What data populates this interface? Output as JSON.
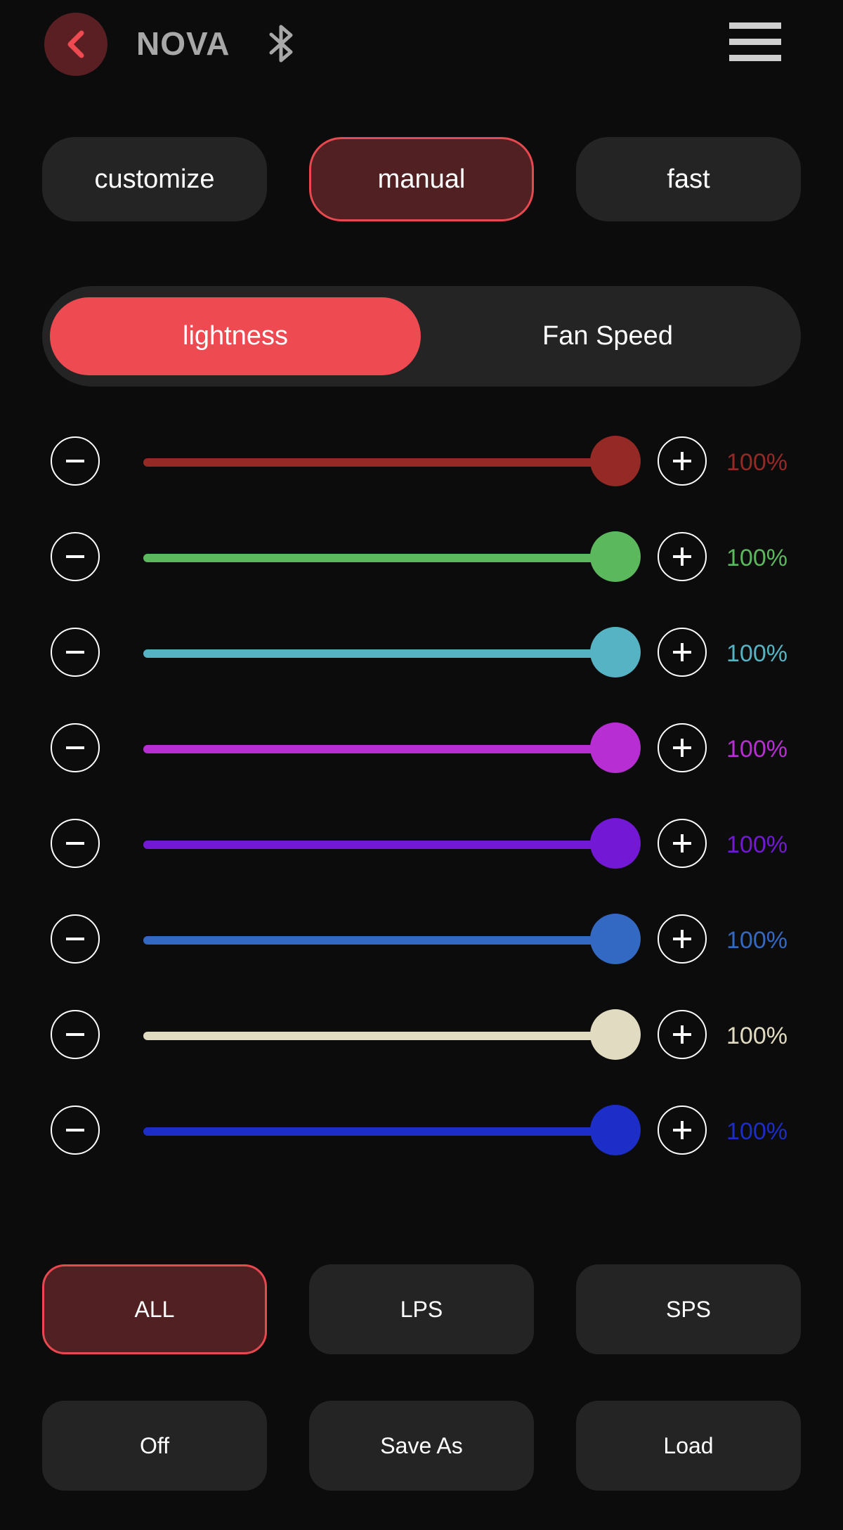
{
  "header": {
    "title": "NOVA",
    "back_icon": "chevron-left-icon",
    "bluetooth_icon": "bluetooth-icon",
    "menu_icon": "hamburger-menu-icon"
  },
  "modes": [
    {
      "label": "customize",
      "active": false
    },
    {
      "label": "manual",
      "active": true
    },
    {
      "label": "fast",
      "active": false
    }
  ],
  "segment": [
    {
      "label": "lightness",
      "active": true
    },
    {
      "label": "Fan Speed",
      "active": false
    }
  ],
  "sliders": [
    {
      "value": 100,
      "display": "100%",
      "color": "#952925"
    },
    {
      "value": 100,
      "display": "100%",
      "color": "#5cb85c"
    },
    {
      "value": 100,
      "display": "100%",
      "color": "#55b3c3"
    },
    {
      "value": 100,
      "display": "100%",
      "color": "#b72ed3"
    },
    {
      "value": 100,
      "display": "100%",
      "color": "#7319d6"
    },
    {
      "value": 100,
      "display": "100%",
      "color": "#3469c3"
    },
    {
      "value": 100,
      "display": "100%",
      "color": "#e1dcc1"
    },
    {
      "value": 100,
      "display": "100%",
      "color": "#1c2dc8"
    }
  ],
  "channel_buttons": [
    {
      "label": "ALL",
      "active": true
    },
    {
      "label": "LPS",
      "active": false
    },
    {
      "label": "SPS",
      "active": false
    }
  ],
  "action_buttons": [
    {
      "label": "Off"
    },
    {
      "label": "Save As"
    },
    {
      "label": "Load"
    }
  ],
  "colors": {
    "accent": "#ed4a52",
    "active_bg": "#512022",
    "button_bg": "#242425",
    "background": "#0c0c0d"
  }
}
